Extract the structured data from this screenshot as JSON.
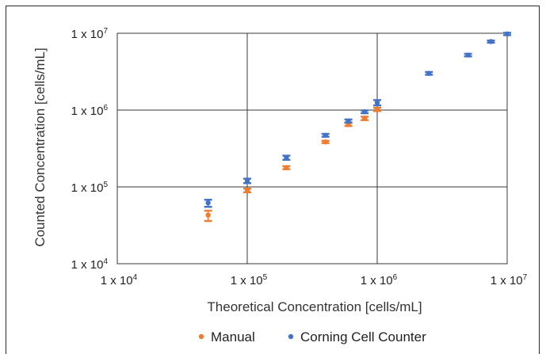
{
  "chart_data": {
    "type": "scatter",
    "x_scale": "log",
    "y_scale": "log",
    "xlim": [
      10000,
      10000000
    ],
    "ylim": [
      10000,
      10000000
    ],
    "xlabel": "Theoretical Concentration  [cells/mL]",
    "ylabel": "Counted Concentration  [cells/mL]",
    "grid": true,
    "legend_position": "bottom",
    "x_ticks": [
      {
        "value": 10000,
        "label": "1 x 10",
        "exp": "4"
      },
      {
        "value": 100000,
        "label": "1 x 10",
        "exp": "5"
      },
      {
        "value": 1000000,
        "label": "1 x 10",
        "exp": "6"
      },
      {
        "value": 10000000,
        "label": "1 x 10",
        "exp": "7"
      }
    ],
    "y_ticks": [
      {
        "value": 10000,
        "label": "1 x 10",
        "exp": "4"
      },
      {
        "value": 100000,
        "label": "1 x 10",
        "exp": "5"
      },
      {
        "value": 1000000,
        "label": "1 x 10",
        "exp": "6"
      },
      {
        "value": 10000000,
        "label": "1 x 10",
        "exp": "7"
      }
    ],
    "series": [
      {
        "name": "Manual",
        "color": "#ed7d31",
        "points": [
          {
            "x": 50000,
            "y": 43000,
            "lo": 36000,
            "hi": 49000
          },
          {
            "x": 100000,
            "y": 90000,
            "lo": 85000,
            "hi": 95000
          },
          {
            "x": 200000,
            "y": 178000,
            "lo": 170000,
            "hi": 186000
          },
          {
            "x": 400000,
            "y": 385000,
            "lo": 372000,
            "hi": 398000
          },
          {
            "x": 600000,
            "y": 650000,
            "lo": 620000,
            "hi": 680000
          },
          {
            "x": 800000,
            "y": 780000,
            "lo": 740000,
            "hi": 820000
          },
          {
            "x": 1000000,
            "y": 1020000,
            "lo": 970000,
            "hi": 1070000
          }
        ]
      },
      {
        "name": "Corning Cell Counter",
        "color": "#4472c4",
        "points": [
          {
            "x": 50000,
            "y": 62000,
            "lo": 55000,
            "hi": 68000
          },
          {
            "x": 100000,
            "y": 120000,
            "lo": 112000,
            "hi": 128000
          },
          {
            "x": 200000,
            "y": 240000,
            "lo": 225000,
            "hi": 255000
          },
          {
            "x": 400000,
            "y": 470000,
            "lo": 450000,
            "hi": 490000
          },
          {
            "x": 600000,
            "y": 720000,
            "lo": 690000,
            "hi": 755000
          },
          {
            "x": 800000,
            "y": 950000,
            "lo": 910000,
            "hi": 990000
          },
          {
            "x": 1000000,
            "y": 1250000,
            "lo": 1150000,
            "hi": 1350000
          },
          {
            "x": 2500000,
            "y": 3000000,
            "lo": 2880000,
            "hi": 3130000
          },
          {
            "x": 5000000,
            "y": 5200000,
            "lo": 5000000,
            "hi": 5400000
          },
          {
            "x": 7500000,
            "y": 7800000,
            "lo": 7550000,
            "hi": 8050000
          },
          {
            "x": 10000000,
            "y": 9800000,
            "lo": 9450000,
            "hi": 10150000
          }
        ]
      }
    ]
  }
}
